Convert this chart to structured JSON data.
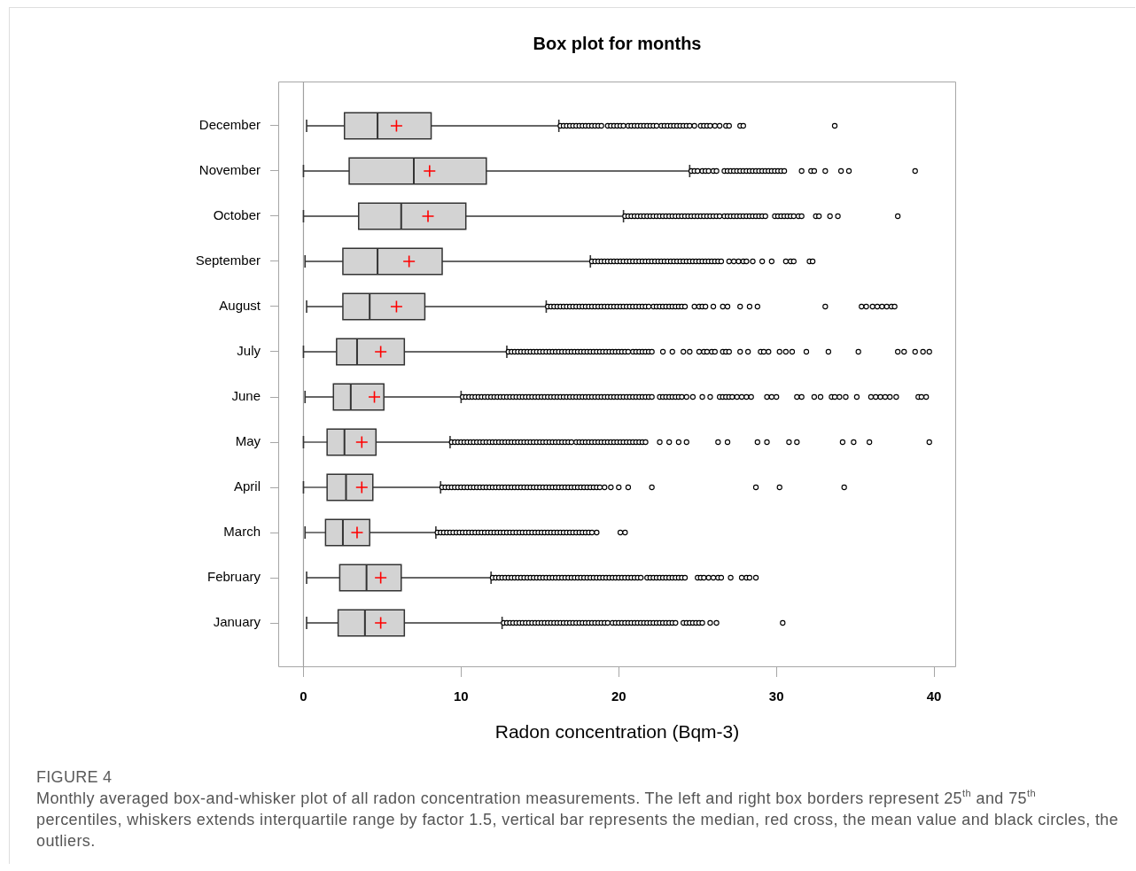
{
  "chart_data": {
    "type": "box",
    "title": "Box plot for months",
    "xlabel": "Radon concentration (Bqm-3)",
    "orientation": "horizontal",
    "categories": [
      "December",
      "November",
      "October",
      "September",
      "August",
      "July",
      "June",
      "May",
      "April",
      "March",
      "February",
      "January"
    ],
    "color": "#d3d3d3",
    "marker": "circle",
    "xlim": [
      -1.6,
      41.4
    ],
    "xticks": [
      0,
      10,
      20,
      30,
      40
    ],
    "ref_lines": [
      {
        "axis": "x",
        "value": 0,
        "color": "#a0a0a0"
      }
    ],
    "boxes": [
      {
        "low": 0.2,
        "q1": 2.6,
        "median": 4.7,
        "q3": 8.1,
        "high": 16.2,
        "mean": 5.9,
        "outliers": [
          16.3,
          16.5,
          16.7,
          16.9,
          17.1,
          17.3,
          17.5,
          17.7,
          17.9,
          18.1,
          18.3,
          18.5,
          18.7,
          18.9,
          19.3,
          19.5,
          19.7,
          19.9,
          20.1,
          20.3,
          20.6,
          20.8,
          21.0,
          21.2,
          21.4,
          21.6,
          21.8,
          22.0,
          22.2,
          22.4,
          22.7,
          22.9,
          23.1,
          23.3,
          23.5,
          23.7,
          23.9,
          24.1,
          24.3,
          24.5,
          24.8,
          25.2,
          25.4,
          25.6,
          25.8,
          26.1,
          26.4,
          26.8,
          27.0,
          27.7,
          27.9,
          33.7
        ]
      },
      {
        "low": 0,
        "q1": 2.9,
        "median": 7.0,
        "q3": 11.6,
        "high": 24.5,
        "mean": 8.0,
        "outliers": [
          24.6,
          24.8,
          25.0,
          25.3,
          25.5,
          25.7,
          26.0,
          26.2,
          26.7,
          26.9,
          27.1,
          27.3,
          27.5,
          27.7,
          27.9,
          28.1,
          28.3,
          28.5,
          28.7,
          28.9,
          29.1,
          29.3,
          29.5,
          29.7,
          29.9,
          30.1,
          30.3,
          30.5,
          31.6,
          32.2,
          32.4,
          33.1,
          34.1,
          34.6,
          38.8
        ]
      },
      {
        "low": 0,
        "q1": 3.5,
        "median": 6.2,
        "q3": 10.3,
        "high": 20.3,
        "mean": 7.9,
        "outliers": [
          20.4,
          20.6,
          20.8,
          21.0,
          21.2,
          21.4,
          21.6,
          21.8,
          22.0,
          22.2,
          22.4,
          22.6,
          22.8,
          23.0,
          23.2,
          23.4,
          23.6,
          23.8,
          24.0,
          24.2,
          24.4,
          24.6,
          24.8,
          25.0,
          25.2,
          25.4,
          25.6,
          25.8,
          26.0,
          26.2,
          26.4,
          26.7,
          26.9,
          27.1,
          27.3,
          27.5,
          27.7,
          27.9,
          28.1,
          28.3,
          28.5,
          28.7,
          28.9,
          29.1,
          29.3,
          29.9,
          30.1,
          30.3,
          30.5,
          30.7,
          30.9,
          31.1,
          31.4,
          31.6,
          32.5,
          32.7,
          33.4,
          33.9,
          37.7
        ]
      },
      {
        "low": 0.1,
        "q1": 2.5,
        "median": 4.7,
        "q3": 8.8,
        "high": 18.2,
        "mean": 6.7,
        "outliers": [
          18.3,
          18.5,
          18.7,
          18.9,
          19.1,
          19.3,
          19.5,
          19.7,
          19.9,
          20.1,
          20.3,
          20.5,
          20.7,
          20.9,
          21.1,
          21.3,
          21.5,
          21.7,
          21.9,
          22.1,
          22.3,
          22.5,
          22.7,
          22.9,
          23.1,
          23.3,
          23.5,
          23.7,
          23.9,
          24.1,
          24.3,
          24.5,
          24.7,
          24.9,
          25.1,
          25.3,
          25.5,
          25.7,
          25.9,
          26.1,
          26.3,
          26.5,
          27.0,
          27.3,
          27.6,
          27.9,
          28.1,
          28.5,
          29.1,
          29.7,
          30.6,
          30.9,
          31.1,
          32.1,
          32.3
        ]
      },
      {
        "low": 0.2,
        "q1": 2.5,
        "median": 4.2,
        "q3": 7.7,
        "high": 15.4,
        "mean": 5.9,
        "outliers": [
          15.5,
          15.7,
          15.9,
          16.1,
          16.3,
          16.5,
          16.7,
          16.9,
          17.1,
          17.3,
          17.5,
          17.7,
          17.9,
          18.1,
          18.3,
          18.5,
          18.7,
          18.9,
          19.1,
          19.3,
          19.5,
          19.7,
          19.9,
          20.1,
          20.3,
          20.5,
          20.7,
          20.9,
          21.1,
          21.3,
          21.5,
          21.7,
          21.9,
          22.2,
          22.4,
          22.6,
          22.8,
          23.0,
          23.2,
          23.4,
          23.6,
          23.8,
          24.0,
          24.2,
          24.8,
          25.1,
          25.3,
          25.5,
          26.0,
          26.6,
          26.9,
          27.7,
          28.3,
          28.8,
          33.1,
          35.4,
          35.7,
          36.1,
          36.4,
          36.7,
          37.0,
          37.3,
          37.5
        ]
      },
      {
        "low": 0,
        "q1": 2.1,
        "median": 3.4,
        "q3": 6.4,
        "high": 12.9,
        "mean": 4.9,
        "outliers": [
          13.0,
          13.2,
          13.4,
          13.6,
          13.8,
          14.0,
          14.2,
          14.4,
          14.6,
          14.8,
          15.0,
          15.2,
          15.4,
          15.6,
          15.8,
          16.0,
          16.2,
          16.4,
          16.6,
          16.8,
          17.0,
          17.2,
          17.4,
          17.6,
          17.8,
          18.0,
          18.2,
          18.4,
          18.6,
          18.8,
          19.0,
          19.2,
          19.4,
          19.6,
          19.8,
          20.0,
          20.2,
          20.4,
          20.6,
          20.9,
          21.1,
          21.3,
          21.5,
          21.7,
          21.9,
          22.1,
          22.8,
          23.4,
          24.1,
          24.5,
          25.1,
          25.4,
          25.6,
          25.9,
          26.1,
          26.6,
          26.8,
          27.0,
          27.7,
          28.2,
          29.0,
          29.2,
          29.5,
          30.2,
          30.6,
          31.0,
          31.9,
          33.3,
          35.2,
          37.7,
          38.1,
          38.8,
          39.3,
          39.7
        ]
      },
      {
        "low": 0.1,
        "q1": 1.9,
        "median": 3.0,
        "q3": 5.1,
        "high": 10.0,
        "mean": 4.5,
        "outliers": [
          10.1,
          10.3,
          10.5,
          10.7,
          10.9,
          11.1,
          11.3,
          11.5,
          11.7,
          11.9,
          12.1,
          12.3,
          12.5,
          12.7,
          12.9,
          13.1,
          13.3,
          13.5,
          13.7,
          13.9,
          14.1,
          14.3,
          14.5,
          14.7,
          14.9,
          15.1,
          15.3,
          15.5,
          15.7,
          15.9,
          16.1,
          16.3,
          16.5,
          16.7,
          16.9,
          17.1,
          17.3,
          17.5,
          17.7,
          17.9,
          18.1,
          18.3,
          18.5,
          18.7,
          18.9,
          19.1,
          19.3,
          19.5,
          19.7,
          19.9,
          20.1,
          20.3,
          20.5,
          20.7,
          20.9,
          21.1,
          21.3,
          21.5,
          21.7,
          21.9,
          22.1,
          22.6,
          22.8,
          23.0,
          23.2,
          23.4,
          23.6,
          23.8,
          24.0,
          24.3,
          24.7,
          25.3,
          25.8,
          26.4,
          26.6,
          26.8,
          27.0,
          27.2,
          27.5,
          27.8,
          28.1,
          28.4,
          29.4,
          29.7,
          30.0,
          31.3,
          31.6,
          32.4,
          32.8,
          33.5,
          33.7,
          34.0,
          34.4,
          35.1,
          36.0,
          36.3,
          36.6,
          36.9,
          37.2,
          37.6,
          39.0,
          39.2,
          39.5
        ]
      },
      {
        "low": 0,
        "q1": 1.5,
        "median": 2.6,
        "q3": 4.6,
        "high": 9.3,
        "mean": 3.7,
        "outliers": [
          9.4,
          9.6,
          9.8,
          10.0,
          10.2,
          10.4,
          10.6,
          10.8,
          11.0,
          11.2,
          11.4,
          11.6,
          11.8,
          12.0,
          12.2,
          12.4,
          12.6,
          12.8,
          13.0,
          13.2,
          13.4,
          13.6,
          13.8,
          14.0,
          14.2,
          14.4,
          14.6,
          14.8,
          15.0,
          15.2,
          15.4,
          15.6,
          15.8,
          16.0,
          16.2,
          16.4,
          16.6,
          16.8,
          17.0,
          17.3,
          17.5,
          17.7,
          17.9,
          18.1,
          18.3,
          18.5,
          18.7,
          18.9,
          19.1,
          19.3,
          19.5,
          19.7,
          19.9,
          20.1,
          20.3,
          20.5,
          20.7,
          20.9,
          21.1,
          21.3,
          21.5,
          21.7,
          22.6,
          23.2,
          23.8,
          24.3,
          26.3,
          26.9,
          28.8,
          29.4,
          30.8,
          31.3,
          34.2,
          34.9,
          35.9,
          39.7
        ]
      },
      {
        "low": 0,
        "q1": 1.5,
        "median": 2.7,
        "q3": 4.4,
        "high": 8.7,
        "mean": 3.7,
        "outliers": [
          8.8,
          9.0,
          9.2,
          9.4,
          9.6,
          9.8,
          10.0,
          10.2,
          10.4,
          10.6,
          10.8,
          11.0,
          11.2,
          11.4,
          11.6,
          11.8,
          12.0,
          12.2,
          12.4,
          12.6,
          12.8,
          13.0,
          13.2,
          13.4,
          13.6,
          13.8,
          14.0,
          14.2,
          14.4,
          14.6,
          14.8,
          15.0,
          15.2,
          15.4,
          15.6,
          15.8,
          16.0,
          16.2,
          16.4,
          16.6,
          16.8,
          17.0,
          17.2,
          17.4,
          17.6,
          17.8,
          18.0,
          18.2,
          18.4,
          18.6,
          18.8,
          19.1,
          19.5,
          20.0,
          20.6,
          22.1,
          28.7,
          30.2,
          34.3
        ]
      },
      {
        "low": 0.1,
        "q1": 1.4,
        "median": 2.5,
        "q3": 4.2,
        "high": 8.4,
        "mean": 3.4,
        "outliers": [
          8.5,
          8.7,
          8.9,
          9.1,
          9.3,
          9.5,
          9.7,
          9.9,
          10.1,
          10.3,
          10.5,
          10.7,
          10.9,
          11.1,
          11.3,
          11.5,
          11.7,
          11.9,
          12.1,
          12.3,
          12.5,
          12.7,
          12.9,
          13.1,
          13.3,
          13.5,
          13.7,
          13.9,
          14.1,
          14.3,
          14.5,
          14.7,
          14.9,
          15.1,
          15.3,
          15.5,
          15.7,
          15.9,
          16.1,
          16.3,
          16.5,
          16.7,
          16.9,
          17.1,
          17.3,
          17.5,
          17.7,
          17.9,
          18.1,
          18.3,
          18.6,
          20.1,
          20.4
        ]
      },
      {
        "low": 0.2,
        "q1": 2.3,
        "median": 4.0,
        "q3": 6.2,
        "high": 11.9,
        "mean": 4.9,
        "outliers": [
          12.0,
          12.2,
          12.4,
          12.6,
          12.8,
          13.0,
          13.2,
          13.4,
          13.6,
          13.8,
          14.0,
          14.2,
          14.4,
          14.6,
          14.8,
          15.0,
          15.2,
          15.4,
          15.6,
          15.8,
          16.0,
          16.2,
          16.4,
          16.6,
          16.8,
          17.0,
          17.2,
          17.4,
          17.6,
          17.8,
          18.0,
          18.2,
          18.4,
          18.6,
          18.8,
          19.0,
          19.2,
          19.4,
          19.6,
          19.8,
          20.0,
          20.2,
          20.4,
          20.6,
          20.8,
          21.0,
          21.2,
          21.4,
          21.8,
          22.0,
          22.2,
          22.4,
          22.6,
          22.8,
          23.0,
          23.2,
          23.4,
          23.6,
          23.8,
          24.0,
          24.2,
          25.0,
          25.2,
          25.4,
          25.7,
          26.0,
          26.3,
          26.5,
          27.1,
          27.8,
          28.1,
          28.3,
          28.7
        ]
      },
      {
        "low": 0.2,
        "q1": 2.2,
        "median": 3.9,
        "q3": 6.4,
        "high": 12.6,
        "mean": 4.9,
        "outliers": [
          12.7,
          12.9,
          13.1,
          13.3,
          13.5,
          13.7,
          13.9,
          14.1,
          14.3,
          14.5,
          14.7,
          14.9,
          15.1,
          15.3,
          15.5,
          15.7,
          15.9,
          16.1,
          16.3,
          16.5,
          16.7,
          16.9,
          17.1,
          17.3,
          17.5,
          17.7,
          17.9,
          18.1,
          18.3,
          18.5,
          18.7,
          18.9,
          19.1,
          19.3,
          19.6,
          19.8,
          20.0,
          20.2,
          20.4,
          20.6,
          20.8,
          21.0,
          21.2,
          21.4,
          21.6,
          21.8,
          22.0,
          22.2,
          22.4,
          22.6,
          22.8,
          23.0,
          23.2,
          23.4,
          23.6,
          24.1,
          24.3,
          24.5,
          24.7,
          24.9,
          25.1,
          25.3,
          25.8,
          26.2,
          30.4
        ]
      }
    ],
    "annotations": [
      "FIGURE 4",
      "Monthly averaged box-and-whisker plot of all radon concentration measurements. The left and right box borders represent 25$^{th}$ and 75$^{th}$ percentiles, whiskers extends interquartile range by factor 1.5, vertical bar represents the median, red cross, the mean value and black circles, the outliers."
    ]
  }
}
